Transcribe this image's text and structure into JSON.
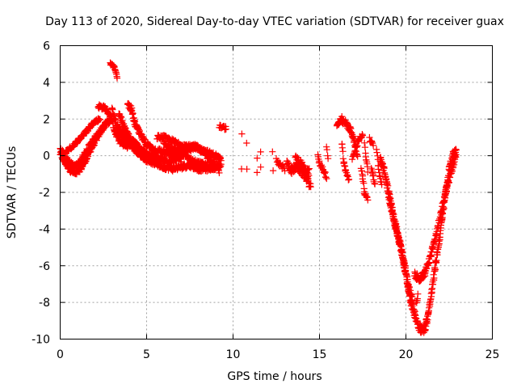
{
  "chart_data": {
    "type": "scatter",
    "title": "Day 113 of 2020, Sidereal Day-to-day VTEC variation (SDTVAR) for receiver guax",
    "xlabel": "GPS time / hours",
    "ylabel": "SDTVAR / TECUs",
    "xlim": [
      0,
      25
    ],
    "ylim": [
      -10,
      6
    ],
    "xticks": [
      0,
      5,
      10,
      15,
      20,
      25
    ],
    "yticks": [
      -10,
      -8,
      -6,
      -4,
      -2,
      0,
      2,
      4,
      6
    ],
    "grid": true,
    "marker": "+",
    "color": "#ff0000",
    "series": [
      {
        "name": "SDTVAR",
        "segments": [
          {
            "points": [
              [
                0.0,
                0.1
              ],
              [
                0.3,
                -0.4
              ],
              [
                0.6,
                -0.8
              ],
              [
                0.9,
                -1.0
              ],
              [
                1.2,
                -0.7
              ],
              [
                1.5,
                -0.2
              ],
              [
                1.8,
                0.4
              ],
              [
                2.1,
                0.9
              ],
              [
                2.4,
                1.4
              ],
              [
                2.7,
                1.8
              ],
              [
                3.0,
                2.0
              ]
            ],
            "step": 0.02,
            "jitter": 0.12
          },
          {
            "points": [
              [
                0.0,
                0.4
              ],
              [
                0.4,
                -0.2
              ],
              [
                0.8,
                -0.6
              ],
              [
                1.1,
                -0.4
              ],
              [
                1.4,
                0.1
              ],
              [
                1.8,
                0.7
              ],
              [
                2.2,
                1.2
              ],
              [
                2.6,
                1.7
              ],
              [
                2.9,
                1.9
              ]
            ],
            "step": 0.02,
            "jitter": 0.12
          },
          {
            "points": [
              [
                0.3,
                0.2
              ],
              [
                0.7,
                0.5
              ],
              [
                1.1,
                0.9
              ],
              [
                1.5,
                1.3
              ],
              [
                1.9,
                1.8
              ],
              [
                2.3,
                2.0
              ]
            ],
            "step": 0.025,
            "jitter": 0.1
          },
          {
            "points": [
              [
                2.2,
                2.7
              ],
              [
                2.6,
                2.6
              ],
              [
                2.9,
                2.2
              ],
              [
                3.2,
                1.2
              ],
              [
                3.5,
                0.7
              ],
              [
                3.9,
                0.5
              ]
            ],
            "step": 0.02,
            "jitter": 0.12
          },
          {
            "points": [
              [
                2.9,
                5.0
              ],
              [
                3.1,
                4.9
              ],
              [
                3.3,
                4.3
              ]
            ],
            "step": 0.02,
            "jitter": 0.08
          },
          {
            "points": [
              [
                3.0,
                2.5
              ],
              [
                3.3,
                1.6
              ],
              [
                3.7,
                0.9
              ],
              [
                4.2,
                0.5
              ],
              [
                4.6,
                0.1
              ],
              [
                5.0,
                -0.2
              ],
              [
                5.5,
                -0.4
              ],
              [
                6.0,
                -0.6
              ],
              [
                6.5,
                -0.7
              ],
              [
                7.0,
                -0.6
              ],
              [
                7.5,
                -0.5
              ],
              [
                8.0,
                -0.7
              ],
              [
                8.5,
                -0.7
              ],
              [
                9.0,
                -0.6
              ],
              [
                9.3,
                -0.5
              ]
            ],
            "step": 0.02,
            "jitter": 0.15
          },
          {
            "points": [
              [
                3.4,
                1.5
              ],
              [
                3.8,
                1.0
              ],
              [
                4.3,
                0.7
              ],
              [
                4.8,
                0.2
              ],
              [
                5.3,
                0.0
              ],
              [
                5.8,
                -0.2
              ],
              [
                6.3,
                -0.3
              ],
              [
                6.8,
                -0.1
              ],
              [
                7.3,
                0.3
              ],
              [
                7.8,
                0.5
              ],
              [
                8.3,
                0.2
              ],
              [
                8.8,
                -0.3
              ],
              [
                9.2,
                -0.8
              ]
            ],
            "step": 0.02,
            "jitter": 0.15
          },
          {
            "points": [
              [
                3.9,
                2.8
              ],
              [
                4.1,
                2.6
              ],
              [
                4.3,
                1.8
              ],
              [
                4.6,
                1.2
              ],
              [
                5.0,
                0.6
              ],
              [
                5.5,
                0.3
              ],
              [
                6.0,
                0.2
              ],
              [
                6.5,
                0.0
              ],
              [
                7.0,
                -0.2
              ]
            ],
            "step": 0.02,
            "jitter": 0.15
          },
          {
            "points": [
              [
                3.4,
                2.3
              ],
              [
                3.8,
                1.4
              ],
              [
                4.1,
                0.8
              ]
            ],
            "step": 0.02,
            "jitter": 0.12
          },
          {
            "points": [
              [
                5.6,
                1.0
              ],
              [
                6.0,
                1.0
              ],
              [
                6.5,
                0.8
              ],
              [
                7.0,
                0.6
              ],
              [
                7.5,
                0.5
              ],
              [
                8.0,
                0.4
              ],
              [
                8.5,
                0.2
              ],
              [
                9.0,
                0.0
              ],
              [
                9.3,
                -0.2
              ]
            ],
            "step": 0.025,
            "jitter": 0.12
          },
          {
            "points": [
              [
                6.0,
                0.6
              ],
              [
                6.5,
                0.4
              ],
              [
                7.0,
                0.2
              ],
              [
                7.5,
                -0.2
              ],
              [
                8.0,
                -0.4
              ],
              [
                8.5,
                -0.5
              ]
            ],
            "step": 0.025,
            "jitter": 0.12
          },
          {
            "points": [
              [
                9.2,
                1.6
              ],
              [
                9.6,
                1.5
              ]
            ],
            "step": 0.03,
            "jitter": 0.1
          },
          {
            "points": [
              [
                10.5,
                1.2
              ],
              [
                10.5,
                -0.8
              ]
            ],
            "step": 0.05,
            "jitter": 0.1
          },
          {
            "points": [
              [
                10.8,
                0.6
              ],
              [
                10.8,
                -0.7
              ]
            ],
            "step": 0.05,
            "jitter": 0.1
          },
          {
            "points": [
              [
                11.4,
                -0.2
              ],
              [
                11.4,
                -0.9
              ]
            ],
            "step": 0.05,
            "jitter": 0.1
          },
          {
            "points": [
              [
                11.6,
                0.3
              ],
              [
                11.6,
                -0.6
              ]
            ],
            "step": 0.06,
            "jitter": 0.1
          },
          {
            "points": [
              [
                12.3,
                0.2
              ],
              [
                12.3,
                -0.9
              ]
            ],
            "step": 0.06,
            "jitter": 0.1
          },
          {
            "points": [
              [
                12.5,
                -0.3
              ],
              [
                12.7,
                -0.5
              ],
              [
                13.0,
                -0.7
              ]
            ],
            "step": 0.04,
            "jitter": 0.15
          },
          {
            "points": [
              [
                13.1,
                -0.4
              ],
              [
                13.4,
                -0.8
              ],
              [
                13.7,
                -0.6
              ],
              [
                14.0,
                -0.9
              ],
              [
                14.3,
                -1.3
              ],
              [
                14.5,
                -1.7
              ]
            ],
            "step": 0.02,
            "jitter": 0.2
          },
          {
            "points": [
              [
                13.6,
                -0.2
              ],
              [
                13.9,
                -0.4
              ],
              [
                14.2,
                -0.8
              ],
              [
                14.4,
                -0.9
              ]
            ],
            "step": 0.02,
            "jitter": 0.2
          },
          {
            "points": [
              [
                14.9,
                0.0
              ],
              [
                15.0,
                -0.4
              ],
              [
                15.3,
                -0.9
              ],
              [
                15.4,
                -1.2
              ]
            ],
            "step": 0.03,
            "jitter": 0.12
          },
          {
            "points": [
              [
                15.4,
                0.5
              ],
              [
                15.5,
                -0.2
              ]
            ],
            "step": 0.04,
            "jitter": 0.08
          },
          {
            "points": [
              [
                16.0,
                1.6
              ],
              [
                16.2,
                1.9
              ],
              [
                16.5,
                1.8
              ],
              [
                16.8,
                1.4
              ],
              [
                17.0,
                0.8
              ],
              [
                17.2,
                0.0
              ]
            ],
            "step": 0.02,
            "jitter": 0.15
          },
          {
            "points": [
              [
                16.3,
                2.2
              ],
              [
                16.3,
                0.6
              ],
              [
                16.4,
                -0.3
              ],
              [
                16.5,
                -0.8
              ],
              [
                16.7,
                -1.3
              ]
            ],
            "step": 0.03,
            "jitter": 0.12
          },
          {
            "points": [
              [
                16.9,
                -0.2
              ],
              [
                17.1,
                0.4
              ],
              [
                17.3,
                0.9
              ],
              [
                17.5,
                1.2
              ]
            ],
            "step": 0.03,
            "jitter": 0.12
          },
          {
            "points": [
              [
                17.4,
                -0.6
              ],
              [
                17.5,
                -1.2
              ],
              [
                17.6,
                -2.0
              ],
              [
                17.8,
                -2.3
              ]
            ],
            "step": 0.03,
            "jitter": 0.12
          },
          {
            "points": [
              [
                17.9,
                0.9
              ],
              [
                18.1,
                0.6
              ]
            ],
            "step": 0.03,
            "jitter": 0.1
          },
          {
            "points": [
              [
                17.6,
                0.6
              ],
              [
                17.7,
                -0.2
              ],
              [
                17.8,
                -0.8
              ]
            ],
            "step": 0.03,
            "jitter": 0.1
          },
          {
            "points": [
              [
                18.0,
                -0.6
              ],
              [
                18.1,
                -1.1
              ],
              [
                18.2,
                -1.6
              ]
            ],
            "step": 0.03,
            "jitter": 0.1
          },
          {
            "points": [
              [
                18.3,
                0.4
              ],
              [
                18.4,
                -0.5
              ],
              [
                18.5,
                -1.2
              ],
              [
                18.6,
                -1.6
              ]
            ],
            "step": 0.03,
            "jitter": 0.1
          },
          {
            "points": [
              [
                18.5,
                -0.1
              ],
              [
                18.7,
                -0.7
              ],
              [
                18.9,
                -1.5
              ],
              [
                19.1,
                -2.5
              ],
              [
                19.3,
                -3.4
              ],
              [
                19.5,
                -4.2
              ],
              [
                19.7,
                -5.0
              ],
              [
                19.9,
                -6.0
              ],
              [
                20.1,
                -7.0
              ],
              [
                20.3,
                -8.0
              ],
              [
                20.5,
                -8.6
              ],
              [
                20.7,
                -9.2
              ],
              [
                20.9,
                -9.5
              ],
              [
                21.1,
                -9.4
              ],
              [
                21.3,
                -8.6
              ],
              [
                21.5,
                -7.4
              ],
              [
                21.7,
                -6.0
              ],
              [
                21.9,
                -4.8
              ],
              [
                22.1,
                -3.4
              ],
              [
                22.3,
                -2.0
              ],
              [
                22.5,
                -0.8
              ],
              [
                22.7,
                0.0
              ],
              [
                22.9,
                0.3
              ]
            ],
            "step": 0.015,
            "jitter": 0.22
          },
          {
            "points": [
              [
                19.0,
                -2.2
              ],
              [
                19.2,
                -3.0
              ],
              [
                19.4,
                -3.8
              ],
              [
                19.6,
                -4.6
              ],
              [
                19.8,
                -5.4
              ],
              [
                20.0,
                -6.4
              ],
              [
                20.2,
                -7.3
              ],
              [
                20.4,
                -8.0
              ]
            ],
            "step": 0.02,
            "jitter": 0.18
          },
          {
            "points": [
              [
                20.5,
                -6.5
              ],
              [
                20.8,
                -6.7
              ],
              [
                21.1,
                -6.4
              ],
              [
                21.4,
                -5.6
              ],
              [
                21.7,
                -4.5
              ],
              [
                22.0,
                -3.2
              ],
              [
                22.3,
                -2.0
              ],
              [
                22.6,
                -0.9
              ],
              [
                22.9,
                -0.1
              ]
            ],
            "step": 0.02,
            "jitter": 0.18
          },
          {
            "points": [
              [
                20.6,
                -8.0
              ],
              [
                20.7,
                -7.6
              ]
            ],
            "step": 0.03,
            "jitter": 0.12
          }
        ]
      }
    ]
  }
}
